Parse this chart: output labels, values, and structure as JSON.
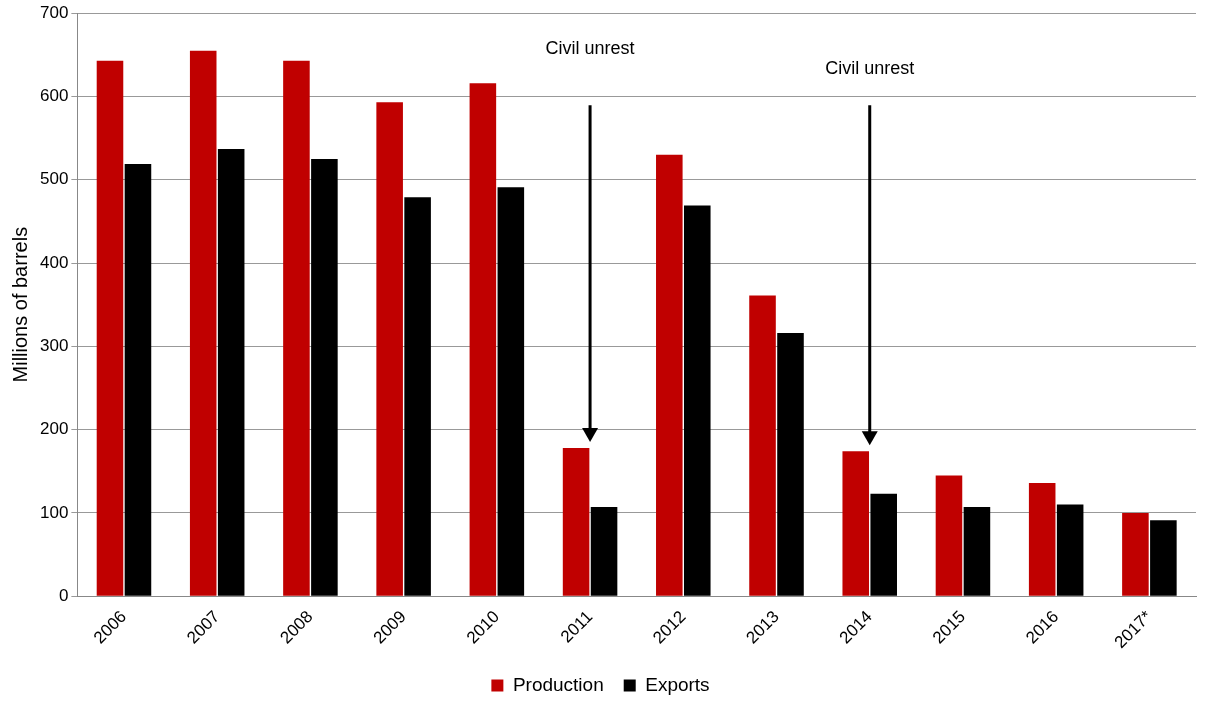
{
  "chart_data": {
    "type": "bar",
    "ylabel": "Millions of barrels",
    "categories": [
      "2006",
      "2007",
      "2008",
      "2009",
      "2010",
      "2011",
      "2012",
      "2013",
      "2014",
      "2015",
      "2016",
      "2017*"
    ],
    "series": [
      {
        "name": "Production",
        "color": "#c00000",
        "values": [
          643,
          655,
          643,
          593,
          616,
          178,
          530,
          361,
          174,
          145,
          136,
          100
        ]
      },
      {
        "name": "Exports",
        "color": "#000000",
        "values": [
          519,
          537,
          525,
          479,
          491,
          107,
          469,
          316,
          123,
          107,
          110,
          91
        ]
      }
    ],
    "ylim": [
      0,
      700
    ],
    "yticks": [
      0,
      100,
      200,
      300,
      400,
      500,
      600,
      700
    ],
    "grid": "y",
    "legend": "bottom",
    "annotations": [
      "Civil unrest",
      "Civil unrest"
    ]
  }
}
